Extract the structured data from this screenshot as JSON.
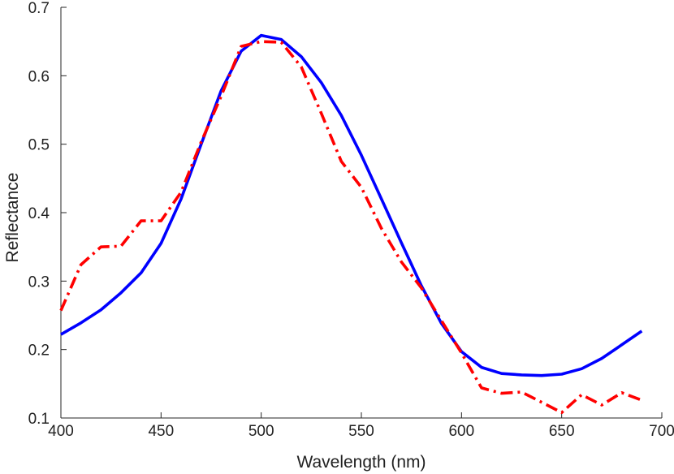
{
  "chart_data": {
    "type": "line",
    "title": "",
    "xlabel": "Wavelength (nm)",
    "ylabel": "Reflectance",
    "xlim": [
      400,
      700
    ],
    "ylim": [
      0.1,
      0.7
    ],
    "xticks": [
      400,
      450,
      500,
      550,
      600,
      650,
      700
    ],
    "xtick_labels": [
      "400",
      "450",
      "500",
      "550",
      "600",
      "650",
      "700"
    ],
    "yticks": [
      0.1,
      0.2,
      0.3,
      0.4,
      0.5,
      0.6,
      0.7
    ],
    "ytick_labels": [
      "0.1",
      "0.2",
      "0.3",
      "0.4",
      "0.5",
      "0.6",
      "0.7"
    ],
    "grid": false,
    "series": [
      {
        "name": "solid-blue",
        "color": "#0000ff",
        "style": "solid",
        "x": [
          400,
          410,
          420,
          430,
          440,
          450,
          460,
          470,
          480,
          490,
          500,
          510,
          520,
          530,
          540,
          550,
          560,
          570,
          580,
          590,
          600,
          610,
          620,
          630,
          640,
          650,
          660,
          670,
          680,
          690
        ],
        "y": [
          0.222,
          0.239,
          0.258,
          0.283,
          0.312,
          0.355,
          0.42,
          0.5,
          0.578,
          0.636,
          0.659,
          0.653,
          0.628,
          0.59,
          0.542,
          0.484,
          0.42,
          0.356,
          0.293,
          0.238,
          0.197,
          0.174,
          0.165,
          0.163,
          0.162,
          0.164,
          0.172,
          0.187,
          0.207,
          0.227
        ]
      },
      {
        "name": "dashdot-red",
        "color": "#ff0000",
        "style": "dashdot",
        "x": [
          400,
          410,
          420,
          430,
          440,
          450,
          460,
          470,
          480,
          490,
          500,
          510,
          520,
          530,
          540,
          550,
          560,
          570,
          580,
          590,
          600,
          610,
          620,
          630,
          640,
          650,
          660,
          670,
          680,
          690
        ],
        "y": [
          0.257,
          0.324,
          0.35,
          0.351,
          0.388,
          0.388,
          0.43,
          0.503,
          0.57,
          0.643,
          0.65,
          0.649,
          0.613,
          0.545,
          0.475,
          0.437,
          0.377,
          0.328,
          0.29,
          0.242,
          0.195,
          0.144,
          0.136,
          0.138,
          0.123,
          0.108,
          0.134,
          0.119,
          0.137,
          0.126
        ]
      }
    ]
  }
}
